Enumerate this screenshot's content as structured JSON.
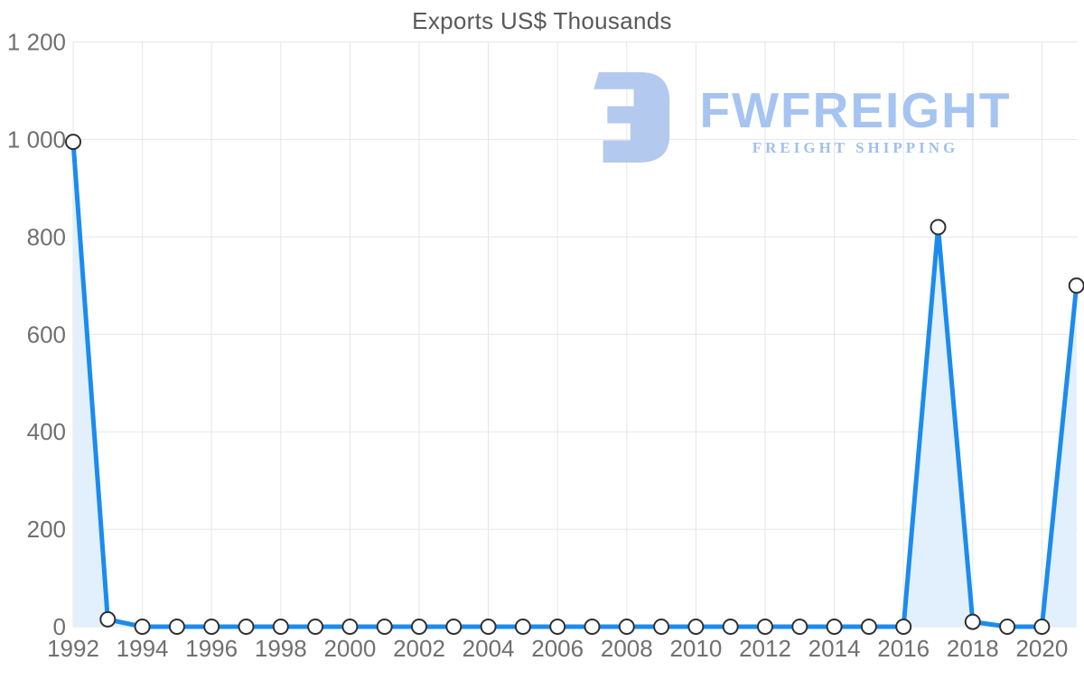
{
  "title": "Exports US$ Thousands",
  "watermark": {
    "brand": "FWFREIGHT",
    "tagline": "FREIGHT SHIPPING"
  },
  "colors": {
    "line": "#1b8cee",
    "area_fill": "#e2effc",
    "grid": "#e6e6e6",
    "axis_label": "#707070",
    "title_text": "#595959",
    "marker_fill": "#ffffff",
    "marker_stroke": "#303030",
    "watermark_blue": "#aec8f0"
  },
  "chart_data": {
    "type": "area",
    "title": "Exports US$ Thousands",
    "xlabel": "",
    "ylabel": "",
    "x": [
      1992,
      1993,
      1994,
      1995,
      1996,
      1997,
      1998,
      1999,
      2000,
      2001,
      2002,
      2003,
      2004,
      2005,
      2006,
      2007,
      2008,
      2009,
      2010,
      2011,
      2012,
      2013,
      2014,
      2015,
      2016,
      2017,
      2018,
      2019,
      2020,
      2021
    ],
    "values": [
      995,
      15,
      0,
      0,
      0,
      0,
      0,
      0,
      0,
      0,
      0,
      0,
      0,
      0,
      0,
      0,
      0,
      0,
      0,
      0,
      0,
      0,
      0,
      0,
      0,
      820,
      10,
      0,
      0,
      700
    ],
    "ylim": [
      0,
      1200
    ],
    "y_ticks": [
      0,
      200,
      400,
      600,
      800,
      1000,
      1200
    ],
    "y_tick_labels": [
      "0",
      "200",
      "400",
      "600",
      "800",
      "1 000",
      "1 200"
    ],
    "x_tick_years": [
      1992,
      1994,
      1996,
      1998,
      2000,
      2002,
      2004,
      2006,
      2008,
      2010,
      2012,
      2014,
      2016,
      2018,
      2020
    ],
    "x_tick_labels": [
      "1992",
      "1994",
      "1996",
      "1998",
      "2000",
      "2002",
      "2004",
      "2006",
      "2008",
      "2010",
      "2012",
      "2014",
      "2016",
      "2018",
      "2020"
    ],
    "grid": true,
    "legend": false,
    "marker": "circle"
  }
}
